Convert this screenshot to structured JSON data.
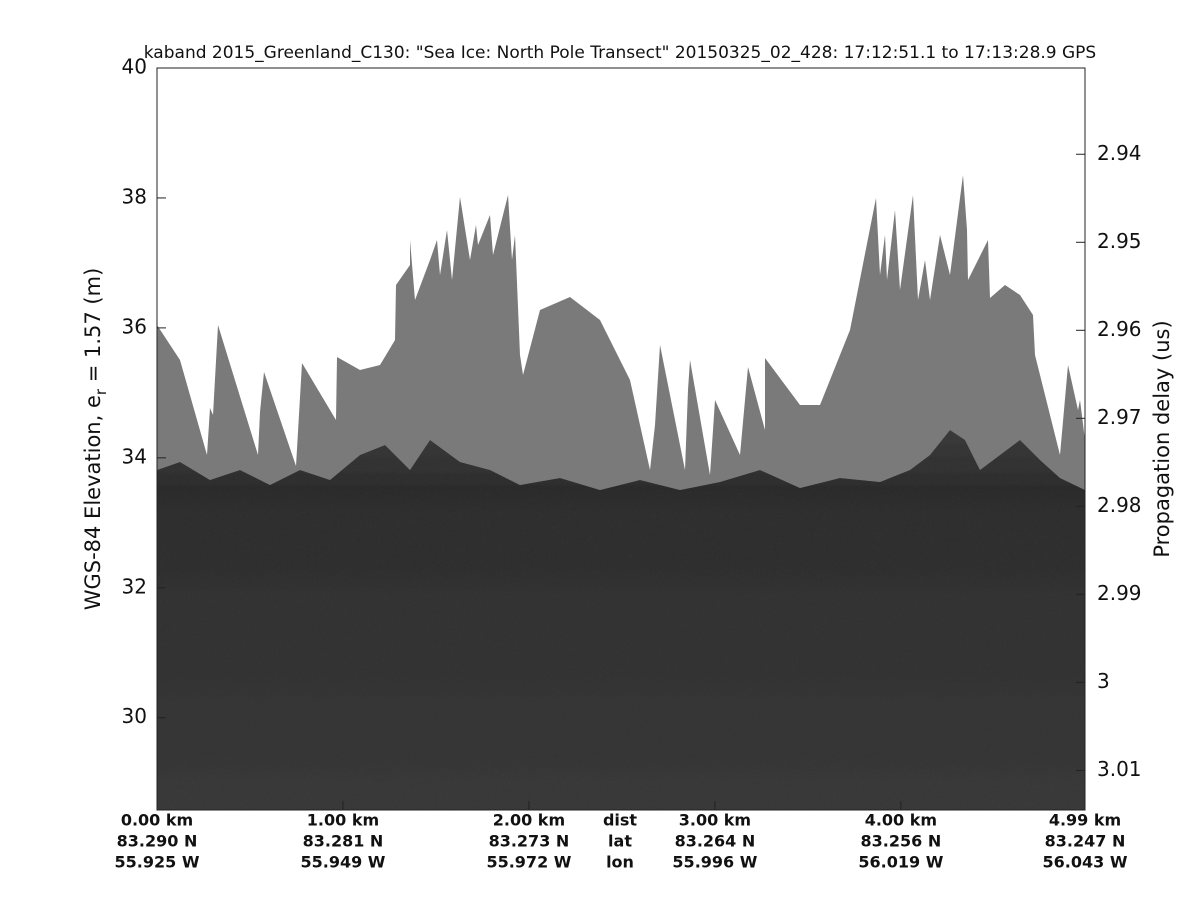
{
  "chart_data": {
    "type": "echogram",
    "title": "kaband 2015_Greenland_C130: \"Sea Ice: North Pole Transect\"  20150325_02_428: 17:12:51.1 to 17:13:28.9 GPS",
    "ylabel": [
      "WGS-84 Elevation, e",
      "r",
      " = 1.57 (m)"
    ],
    "y2label": "Propagation delay (us)",
    "ylim": [
      28.58,
      40
    ],
    "yticks": [
      30,
      32,
      34,
      36,
      38,
      40
    ],
    "y2lim": [
      2.9302,
      3.0145
    ],
    "y2_reversed": true,
    "y2ticks": [
      2.94,
      2.95,
      2.96,
      2.97,
      2.98,
      2.99,
      3,
      3.01
    ],
    "xlim": [
      0,
      4.99
    ],
    "xticks": [
      {
        "value": 0,
        "label": "0.00 km"
      },
      {
        "value": 1,
        "label": "1.00 km"
      },
      {
        "value": 2,
        "label": "2.00 km"
      },
      {
        "value": 3,
        "label": "3.00 km"
      },
      {
        "value": 4,
        "label": "4.00 km"
      },
      {
        "value": 4.99,
        "label": "4.99 km"
      }
    ],
    "lat_labels": [
      "83.290 N",
      "83.281 N",
      "83.273 N",
      "83.264 N",
      "83.256 N",
      "83.247 N"
    ],
    "lon_labels": [
      "55.925 W",
      "55.949 W",
      "55.972 W",
      "55.996 W",
      "56.019 W",
      "56.043 W"
    ],
    "row_labels": [
      "dist",
      "lat",
      "lon"
    ]
  }
}
